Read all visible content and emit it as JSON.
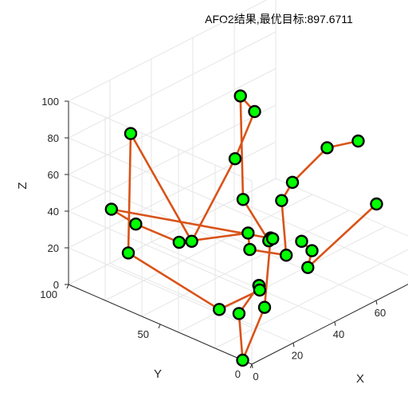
{
  "chart_data": {
    "type": "line",
    "projection": "3d",
    "title": "AFO2结果,最优目标:897.6711",
    "xlabel": "X",
    "ylabel": "Y",
    "zlabel": "Z",
    "xlim": [
      0,
      100
    ],
    "ylim": [
      0,
      100
    ],
    "zlim": [
      0,
      100
    ],
    "xticks": [
      "0",
      "20",
      "40",
      "60"
    ],
    "yticks": [
      "0",
      "50",
      "100"
    ],
    "zticks": [
      "0",
      "20",
      "40",
      "60",
      "80",
      "100"
    ],
    "grid": true,
    "series": [
      {
        "name": "",
        "line_color": "#d95319",
        "marker_face": "#00ff00",
        "marker_edge": "#000000",
        "points": [
          {
            "x": 48,
            "y": 44,
            "z": 22
          },
          {
            "x": 15,
            "y": 10,
            "z": 18
          },
          {
            "x": 0,
            "y": 5,
            "z": 0
          },
          {
            "x": 23,
            "y": 33,
            "z": 0
          },
          {
            "x": 37,
            "y": 38,
            "z": 5
          },
          {
            "x": 38,
            "y": 39,
            "z": 4
          },
          {
            "x": 33,
            "y": 33,
            "z": 7
          },
          {
            "x": 2,
            "y": 20,
            "z": 20
          },
          {
            "x": 20,
            "y": 90,
            "z": 10
          },
          {
            "x": 30,
            "y": 100,
            "z": 65
          },
          {
            "x": 40,
            "y": 78,
            "z": 10
          },
          {
            "x": 45,
            "y": 60,
            "z": 60
          },
          {
            "x": 50,
            "y": 55,
            "z": 85
          },
          {
            "x": 52,
            "y": 65,
            "z": 88
          },
          {
            "x": 40,
            "y": 50,
            "z": 45
          },
          {
            "x": 48,
            "y": 45,
            "z": 20
          },
          {
            "x": 49,
            "y": 44,
            "z": 21
          },
          {
            "x": 3,
            "y": 80,
            "z": 48
          },
          {
            "x": 13,
            "y": 78,
            "z": 35
          },
          {
            "x": 18,
            "y": 60,
            "z": 30
          },
          {
            "x": 38,
            "y": 45,
            "z": 30
          },
          {
            "x": 30,
            "y": 35,
            "z": 30
          },
          {
            "x": 52,
            "y": 40,
            "z": 12
          },
          {
            "x": 48,
            "y": 38,
            "z": 45
          },
          {
            "x": 55,
            "y": 40,
            "z": 50
          },
          {
            "x": 85,
            "y": 55,
            "z": 45
          },
          {
            "x": 100,
            "y": 55,
            "z": 40
          }
        ]
      },
      {
        "name": "",
        "line_color": "#d95319",
        "marker_face": "#00ff00",
        "marker_edge": "#000000",
        "points": [
          {
            "x": 55,
            "y": 35,
            "z": 20
          },
          {
            "x": 60,
            "y": 35,
            "z": 12
          },
          {
            "x": 58,
            "y": 35,
            "z": 4
          },
          {
            "x": 100,
            "y": 45,
            "z": 10
          }
        ]
      }
    ]
  }
}
